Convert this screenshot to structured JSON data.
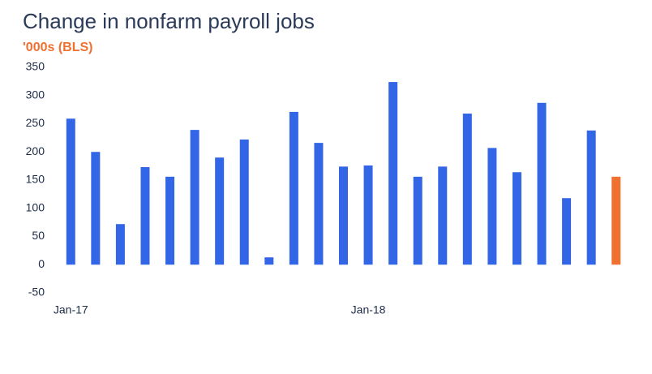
{
  "chart_data": {
    "type": "bar",
    "title": "Change in nonfarm payroll jobs",
    "subtitle": "'000s (BLS)",
    "categories": [
      "Jan-17",
      null,
      null,
      null,
      null,
      null,
      null,
      null,
      null,
      null,
      null,
      null,
      "Jan-18",
      null,
      null,
      null,
      null,
      null,
      null,
      null,
      null,
      null,
      null
    ],
    "values": [
      259,
      200,
      72,
      173,
      156,
      239,
      190,
      222,
      13,
      271,
      216,
      174,
      176,
      324,
      156,
      174,
      268,
      207,
      164,
      287,
      118,
      238,
      156
    ],
    "colors": [
      "#3366e6",
      "#3366e6",
      "#3366e6",
      "#3366e6",
      "#3366e6",
      "#3366e6",
      "#3366e6",
      "#3366e6",
      "#3366e6",
      "#3366e6",
      "#3366e6",
      "#3366e6",
      "#3366e6",
      "#3366e6",
      "#3366e6",
      "#3366e6",
      "#3366e6",
      "#3366e6",
      "#3366e6",
      "#3366e6",
      "#3366e6",
      "#3366e6",
      "#f07030"
    ],
    "ylim": [
      -50,
      350
    ],
    "yticks": [
      -50,
      0,
      50,
      100,
      150,
      200,
      250,
      300,
      350
    ],
    "grid": false
  }
}
